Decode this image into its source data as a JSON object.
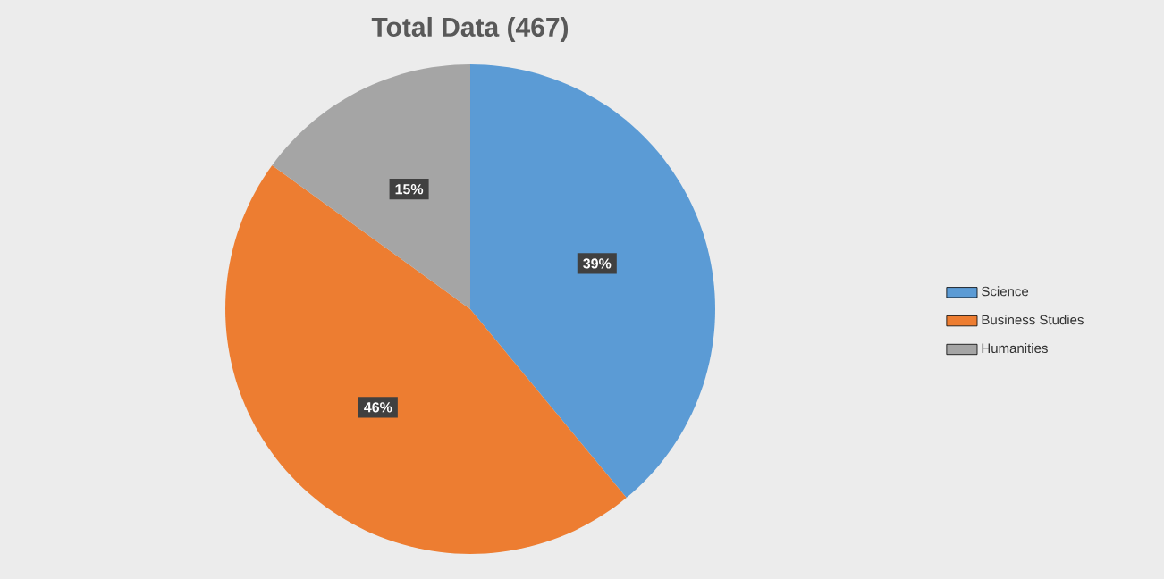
{
  "chart_data": {
    "type": "pie",
    "title": "Total Data (467)",
    "categories": [
      "Science",
      "Business Studies",
      "Humanities"
    ],
    "values": [
      39,
      46,
      15
    ],
    "value_labels": [
      "39%",
      "46%",
      "15%"
    ],
    "colors": [
      "#5b9bd5",
      "#ed7d31",
      "#a5a5a5"
    ],
    "legend": "right"
  }
}
